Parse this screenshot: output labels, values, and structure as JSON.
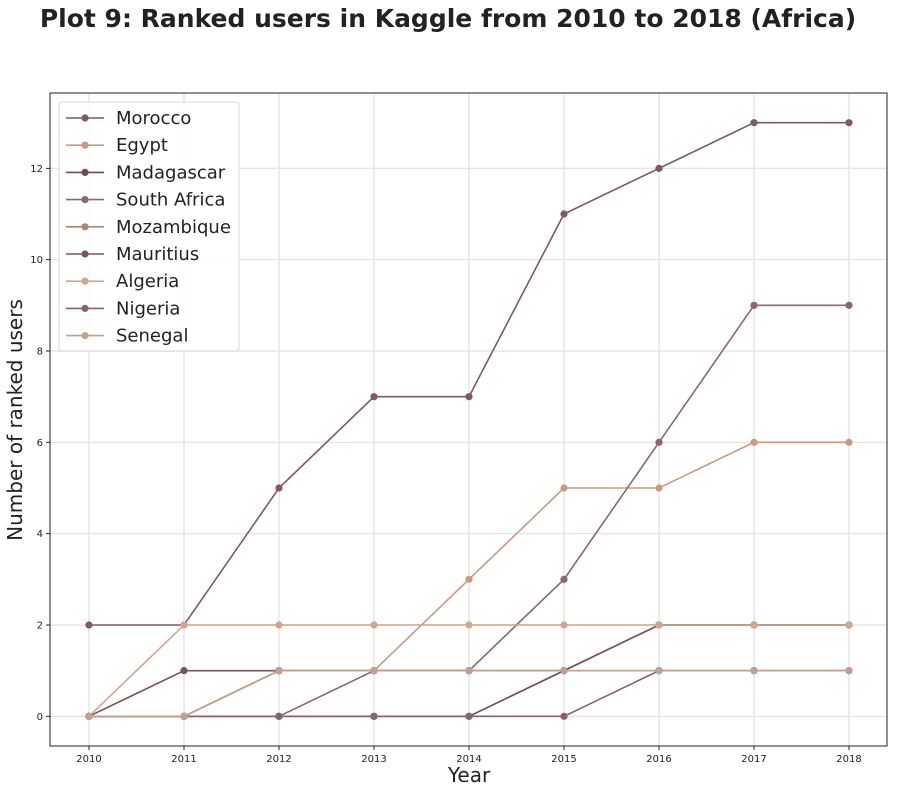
{
  "chart_data": {
    "type": "line",
    "title": "Plot 9: Ranked users in Kaggle from 2010 to 2018 (Africa)",
    "xlabel": "Year",
    "ylabel": "Number of ranked users",
    "x": [
      2010,
      2011,
      2012,
      2013,
      2014,
      2015,
      2016,
      2017,
      2018
    ],
    "xticks": [
      "2010",
      "2011",
      "2012",
      "2013",
      "2014",
      "2015",
      "2016",
      "2017",
      "2018"
    ],
    "yticks": [
      0,
      2,
      4,
      6,
      8,
      10,
      12
    ],
    "ylim": [
      -0.65,
      13.65
    ],
    "grid": true,
    "legend_position": "top-left",
    "series": [
      {
        "name": "Morocco",
        "color": "#7d5a66",
        "values": [
          2,
          2,
          5,
          7,
          7,
          11,
          12,
          13,
          13
        ]
      },
      {
        "name": "Egypt",
        "color": "#c89a82",
        "values": [
          0,
          0,
          1,
          1,
          3,
          5,
          5,
          6,
          6
        ]
      },
      {
        "name": "Madagascar",
        "color": "#6e4a50",
        "values": [
          0,
          0,
          0,
          0,
          0,
          1,
          2,
          2,
          2
        ]
      },
      {
        "name": "South Africa",
        "color": "#8c6670",
        "values": [
          0,
          0,
          0,
          1,
          1,
          3,
          6,
          9,
          9
        ]
      },
      {
        "name": "Mozambique",
        "color": "#b08470",
        "values": [
          0,
          0,
          1,
          1,
          1,
          1,
          1,
          1,
          1
        ]
      },
      {
        "name": "Mauritius",
        "color": "#7a5560",
        "values": [
          0,
          1,
          1,
          1,
          1,
          1,
          2,
          2,
          2
        ]
      },
      {
        "name": "Algeria",
        "color": "#d2a58c",
        "values": [
          0,
          2,
          2,
          2,
          2,
          2,
          2,
          2,
          2
        ]
      },
      {
        "name": "Nigeria",
        "color": "#8a6370",
        "values": [
          0,
          0,
          0,
          0,
          0,
          0,
          1,
          1,
          1
        ]
      },
      {
        "name": "Senegal",
        "color": "#c4a090",
        "values": [
          0,
          0,
          1,
          1,
          1,
          1,
          1,
          1,
          1
        ]
      }
    ]
  }
}
